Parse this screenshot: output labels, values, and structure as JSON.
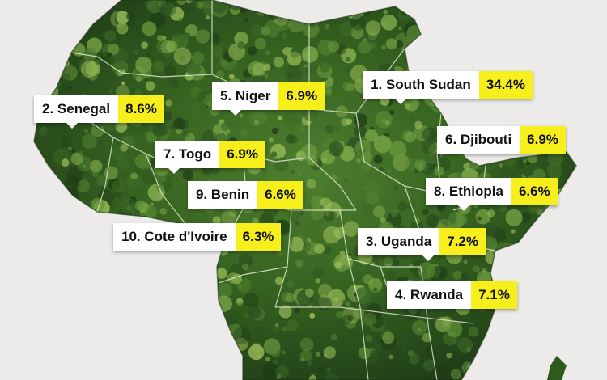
{
  "colors": {
    "background": "#ecebe9",
    "forest_dark": "#1f3d18",
    "forest_mid": "#3d6b27",
    "forest_light": "#7fa94a",
    "border_line": "#dfe8d0",
    "label_bg": "#ffffff",
    "value_bg": "#f7ef1b"
  },
  "labels": [
    {
      "name": "1. South Sudan",
      "value": "34.4%"
    },
    {
      "name": "2. Senegal",
      "value": "8.6%"
    },
    {
      "name": "3. Uganda",
      "value": "7.2%"
    },
    {
      "name": "4. Rwanda",
      "value": "7.1%"
    },
    {
      "name": "5. Niger",
      "value": "6.9%"
    },
    {
      "name": "6. Djibouti",
      "value": "6.9%"
    },
    {
      "name": "7. Togo",
      "value": "6.9%"
    },
    {
      "name": "8. Ethiopia",
      "value": "6.6%"
    },
    {
      "name": "9. Benin",
      "value": "6.6%"
    },
    {
      "name": "10. Cote d'Ivoire",
      "value": "6.3%"
    }
  ]
}
